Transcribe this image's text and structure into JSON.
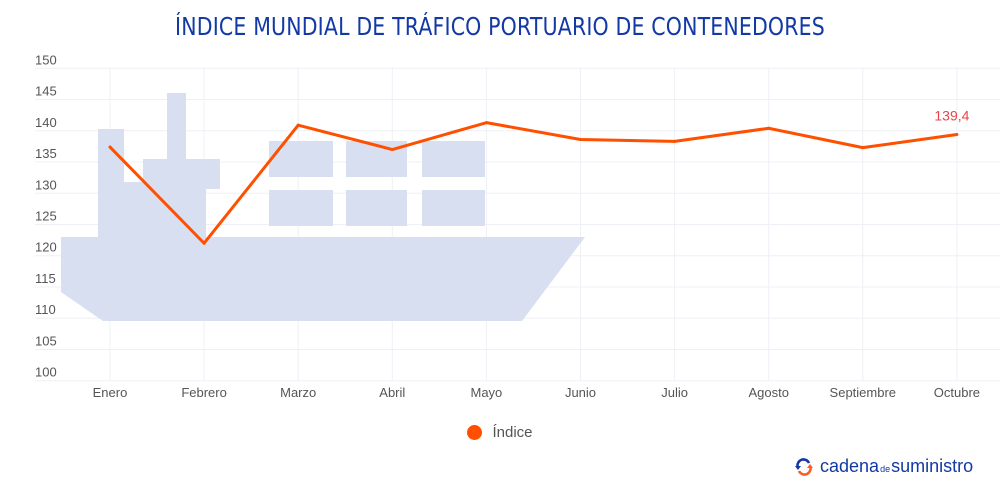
{
  "title": "ÍNDICE MUNDIAL DE TRÁFICO PORTUARIO DE CONTENEDORES",
  "chart_data": {
    "type": "line",
    "title": "ÍNDICE MUNDIAL DE TRÁFICO PORTUARIO DE CONTENEDORES",
    "categories": [
      "Enero",
      "Febrero",
      "Marzo",
      "Abril",
      "Mayo",
      "Junio",
      "Julio",
      "Agosto",
      "Septiembre",
      "Octubre"
    ],
    "series": [
      {
        "name": "Índice",
        "color": "#ff4f00",
        "values": [
          137.4,
          122.0,
          140.9,
          137.0,
          141.3,
          138.6,
          138.3,
          140.4,
          137.3,
          139.4
        ]
      }
    ],
    "data_labels": [
      {
        "index": 9,
        "text": "139,4",
        "color": "#e8454a"
      }
    ],
    "ylim": [
      100,
      150
    ],
    "yticks": [
      100,
      105,
      110,
      115,
      120,
      125,
      130,
      135,
      140,
      145,
      150
    ],
    "grid": true,
    "legend": "bottom",
    "background_illustration": "ship-icon",
    "illustration_color": "#d7dff0"
  },
  "logo": {
    "part1": "cadena",
    "part2": "de",
    "part3": "suministro"
  }
}
